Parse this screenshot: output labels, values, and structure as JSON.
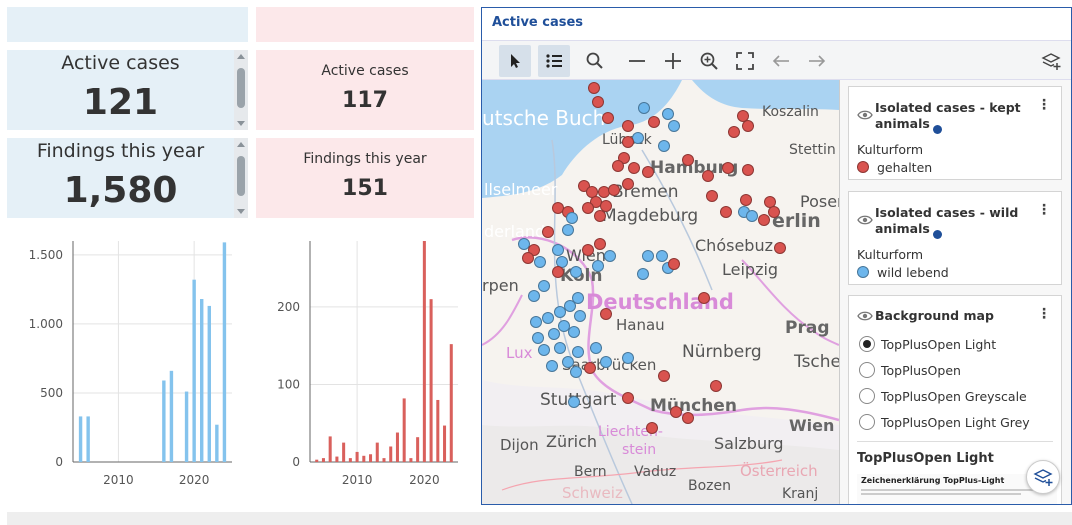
{
  "kpis": {
    "blue": [
      {
        "label": "Active cases",
        "value": "121"
      },
      {
        "label": "Findings this year",
        "value": "1,580"
      }
    ],
    "red": [
      {
        "label": "Active cases",
        "value": "117"
      },
      {
        "label": "Findings this year",
        "value": "151"
      }
    ]
  },
  "colors": {
    "blue_bar": "#84c3ed",
    "red_bar": "#d9605c",
    "blue_dot": "#6db6ec",
    "red_dot": "#d9534f",
    "accent": "#1f4f99"
  },
  "chart_data": [
    {
      "type": "bar",
      "color": "#84c3ed",
      "x": [
        2005,
        2006,
        2016,
        2017,
        2019,
        2020,
        2021,
        2022,
        2023,
        2024
      ],
      "values": [
        330,
        330,
        590,
        660,
        510,
        1320,
        1180,
        1130,
        270,
        1590
      ],
      "xlim": [
        2004,
        2025
      ],
      "ylim": [
        0,
        1600
      ],
      "xticks": [
        2010,
        2020
      ],
      "yticks": [
        0,
        500,
        1000,
        1500
      ],
      "ytick_labels": [
        "0",
        "500",
        "1.000",
        "1.500"
      ],
      "xlabel": "",
      "ylabel": "",
      "title": ""
    },
    {
      "type": "bar",
      "color": "#d9605c",
      "x": [
        2004,
        2005,
        2006,
        2007,
        2008,
        2009,
        2010,
        2011,
        2012,
        2013,
        2014,
        2015,
        2016,
        2017,
        2018,
        2019,
        2020,
        2021,
        2022,
        2023,
        2024
      ],
      "values": [
        3,
        5,
        33,
        7,
        25,
        5,
        13,
        8,
        10,
        25,
        5,
        20,
        38,
        82,
        5,
        32,
        285,
        210,
        80,
        47,
        152
      ],
      "xlim": [
        2003,
        2025
      ],
      "ylim": [
        0,
        285
      ],
      "xticks": [
        2010,
        2020
      ],
      "yticks": [
        0,
        100,
        200
      ],
      "ytick_labels": [
        "0",
        "100",
        "200"
      ],
      "xlabel": "",
      "ylabel": "",
      "title": ""
    }
  ],
  "map_window": {
    "title": "Active cases",
    "toolbar": [
      {
        "icon": "pointer-icon",
        "active": true
      },
      {
        "icon": "legend-list-icon",
        "active": true
      },
      {
        "icon": "search-icon",
        "active": false
      },
      {
        "icon": "zoom-out-icon",
        "active": false
      },
      {
        "icon": "zoom-in-icon",
        "active": false
      },
      {
        "icon": "zoom-area-icon",
        "active": false
      },
      {
        "icon": "fullscreen-icon",
        "active": false
      },
      {
        "icon": "back-arrow-icon",
        "active": false
      },
      {
        "icon": "forward-arrow-icon",
        "active": false
      },
      {
        "icon": "add-layer-icon",
        "active": false
      }
    ],
    "map_labels": [
      "Koszalin",
      "utsche Buch",
      "Lübeck",
      "Stettin",
      "Hamburg",
      "Posen",
      "llselmeer",
      "Bremen",
      "erlin",
      "Magdeburg",
      "derlande",
      "Wien",
      "Chósebuz",
      "Leipzig",
      "Köln",
      "rpen",
      "Deutschland",
      "Prag",
      "Hanau",
      "Lux",
      "Nürnberg",
      "Tsche",
      "Saarbrücken",
      "Stuttgart",
      "München",
      "Wien",
      "Liechten-",
      "stein",
      "Salzburg",
      "Dijon",
      "Zürich",
      "Bern",
      "Vaduz",
      "Österreich",
      "Bozen",
      "Kranj",
      "Schweiz"
    ],
    "layers": {
      "kept": {
        "title": "Isolated cases - kept animals",
        "attribute": "Kulturform",
        "legend_item": "gehalten"
      },
      "wild": {
        "title": "Isolated cases - wild animals",
        "attribute": "Kulturform",
        "legend_item": "wild lebend"
      },
      "background": {
        "title": "Background map",
        "options": [
          "TopPlusOpen Light",
          "TopPlusOpen",
          "TopPlusOpen Greyscale",
          "TopPlusOpen Light Grey"
        ],
        "selected": "TopPlusOpen Light",
        "selected_heading": "TopPlusOpen Light",
        "legend_caption": "Zeichenerklärung TopPlus-Light"
      }
    }
  }
}
